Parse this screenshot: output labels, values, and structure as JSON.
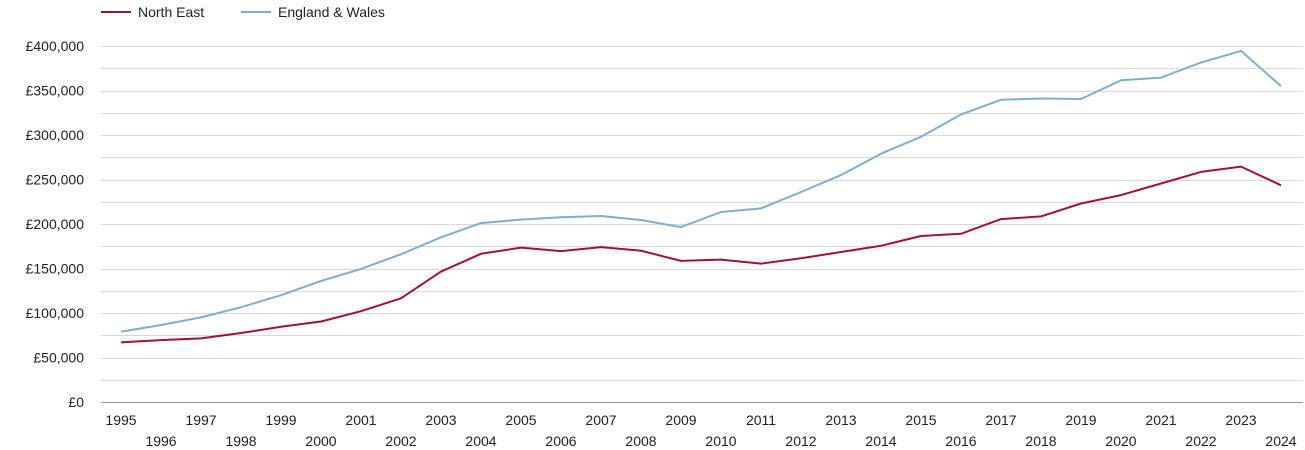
{
  "chart_data": {
    "type": "line",
    "x": [
      1995,
      1996,
      1997,
      1998,
      1999,
      2000,
      2001,
      2002,
      2003,
      2004,
      2005,
      2006,
      2007,
      2008,
      2009,
      2010,
      2011,
      2012,
      2013,
      2014,
      2015,
      2016,
      2017,
      2018,
      2019,
      2020,
      2021,
      2022,
      2023,
      2024
    ],
    "x_tick_labels": [
      "1995",
      "1996",
      "1997",
      "1998",
      "1999",
      "2000",
      "2001",
      "2002",
      "2003",
      "2004",
      "2005",
      "2006",
      "2007",
      "2008",
      "2009",
      "2010",
      "2011",
      "2012",
      "2013",
      "2014",
      "2015",
      "2016",
      "2017",
      "2018",
      "2019",
      "2020",
      "2021",
      "2022",
      "2023",
      "2024"
    ],
    "y_tick_values": [
      0,
      50000,
      100000,
      150000,
      200000,
      250000,
      300000,
      350000,
      400000
    ],
    "y_tick_labels": [
      "£0",
      "£50,000",
      "£100,000",
      "£150,000",
      "£200,000",
      "£250,000",
      "£300,000",
      "£350,000",
      "£400,000"
    ],
    "ylim": [
      0,
      400000
    ],
    "grid": true,
    "legend_position": "top-left",
    "series": [
      {
        "name": "North East",
        "color": "#a50f3a",
        "values": [
          67000,
          69500,
          71500,
          77500,
          84500,
          90500,
          102000,
          116500,
          146500,
          166500,
          173500,
          169500,
          174000,
          170000,
          158500,
          160000,
          155500,
          161500,
          168500,
          175500,
          186500,
          189000,
          205500,
          208500,
          223000,
          232500,
          245500,
          258500,
          264500,
          243500
        ]
      },
      {
        "name": "England & Wales",
        "color": "#7bb0d3",
        "values": [
          79000,
          86500,
          95000,
          106500,
          120000,
          136000,
          149500,
          166000,
          185000,
          201000,
          205000,
          207500,
          209000,
          204500,
          196500,
          213500,
          217500,
          236000,
          255000,
          279000,
          298000,
          323000,
          339500,
          341000,
          340500,
          361500,
          364500,
          381500,
          394500,
          355000
        ]
      }
    ]
  }
}
